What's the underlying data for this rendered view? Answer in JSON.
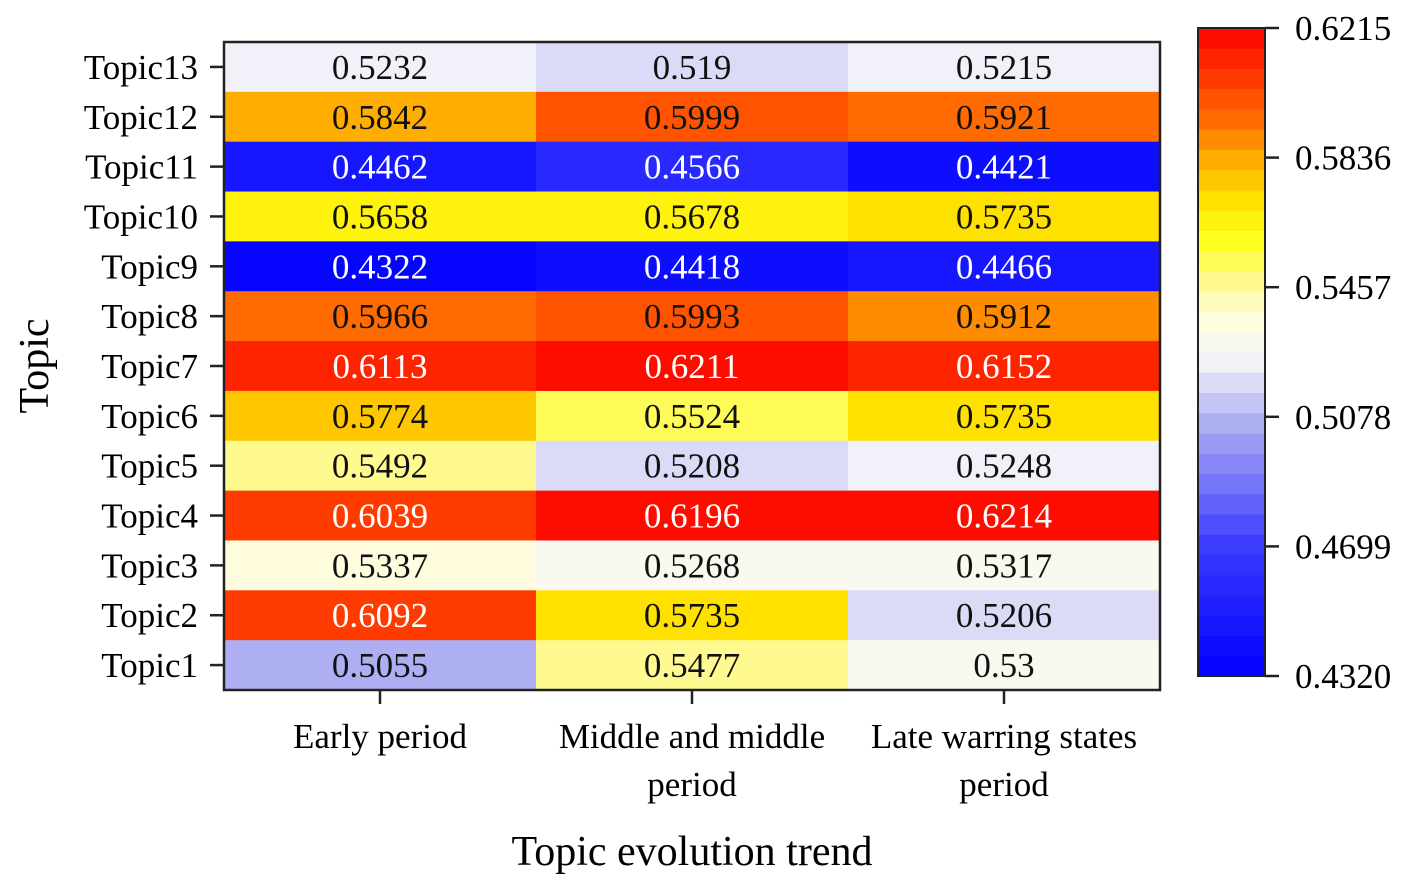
{
  "chart_data": {
    "type": "heatmap",
    "xlabel": "Topic evolution trend",
    "ylabel": "Topic",
    "x_categories": [
      "Early period",
      "Middle and middle period",
      "Late warring states period"
    ],
    "x_tick_lines": [
      [
        "Early period"
      ],
      [
        "Middle and middle",
        "period"
      ],
      [
        "Late warring states",
        "period"
      ]
    ],
    "y_categories": [
      "Topic13",
      "Topic12",
      "Topic11",
      "Topic10",
      "Topic9",
      "Topic8",
      "Topic7",
      "Topic6",
      "Topic5",
      "Topic4",
      "Topic3",
      "Topic2",
      "Topic1"
    ],
    "values": [
      [
        "0.5232",
        "0.519",
        "0.5215"
      ],
      [
        "0.5842",
        "0.5999",
        "0.5921"
      ],
      [
        "0.4462",
        "0.4566",
        "0.4421"
      ],
      [
        "0.5658",
        "0.5678",
        "0.5735"
      ],
      [
        "0.4322",
        "0.4418",
        "0.4466"
      ],
      [
        "0.5966",
        "0.5993",
        "0.5912"
      ],
      [
        "0.6113",
        "0.6211",
        "0.6152"
      ],
      [
        "0.5774",
        "0.5524",
        "0.5735"
      ],
      [
        "0.5492",
        "0.5208",
        "0.5248"
      ],
      [
        "0.6039",
        "0.6196",
        "0.6214"
      ],
      [
        "0.5337",
        "0.5268",
        "0.5317"
      ],
      [
        "0.6092",
        "0.5735",
        "0.5206"
      ],
      [
        "0.5055",
        "0.5477",
        "0.53"
      ]
    ],
    "colorbar": {
      "range": [
        0.432,
        0.6215
      ],
      "ticks": [
        "0.6215",
        "0.5836",
        "0.5457",
        "0.5078",
        "0.4699",
        "0.4320"
      ],
      "colormap_stops": [
        [
          0.432,
          "#0000ff"
        ],
        [
          0.47,
          "#3a3aff"
        ],
        [
          0.5078,
          "#b4b4f2"
        ],
        [
          0.525,
          "#f6f6fb"
        ],
        [
          0.535,
          "#fffde2"
        ],
        [
          0.5457,
          "#fff9a0"
        ],
        [
          0.56,
          "#ffff1a"
        ],
        [
          0.57,
          "#ffe600"
        ],
        [
          0.5836,
          "#ffaa00"
        ],
        [
          0.595,
          "#ff6a00"
        ],
        [
          0.6215,
          "#ff0000"
        ]
      ],
      "levels": 32
    },
    "grid": false
  }
}
